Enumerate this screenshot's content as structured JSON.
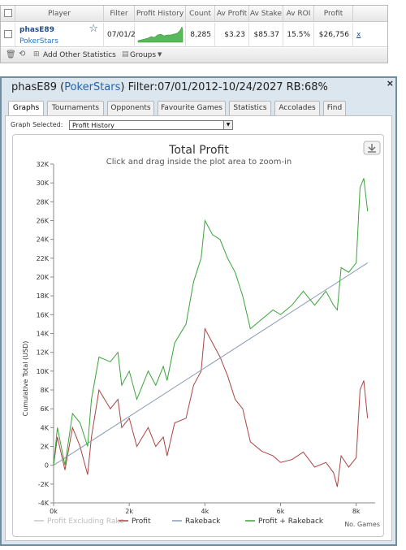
{
  "stats_table": {
    "columns": [
      "Player",
      "Filter",
      "Profit History",
      "Count",
      "Av Profit",
      "Av Stake",
      "Av ROI",
      "Profit"
    ],
    "row": {
      "player_name": "phasE89",
      "site": "PokerStars",
      "filter": "07/01/2",
      "count": "8,285",
      "av_profit": "$3.23",
      "av_stake": "$85.37",
      "av_roi": "15.5%",
      "profit": "$26,756",
      "remove": "x"
    },
    "footer": {
      "add_stats_label": "Add Other Statistics",
      "groups_label": "Groups"
    }
  },
  "panel": {
    "title_player": "phasE89",
    "title_site": "PokerStars",
    "title_rest": "Filter:07/01/2012-10/24/2027 RB:68%",
    "close": "×",
    "tabs": [
      "Graphs",
      "Tournaments",
      "Opponents",
      "Favourite Games",
      "Statistics",
      "Accolades",
      "Find"
    ],
    "active_tab": "Graphs",
    "graph_selected_label": "Graph Selected:",
    "graph_selected_value": "Profit History"
  },
  "chart_data": {
    "type": "line",
    "title": "Total Profit",
    "subtitle": "Click and drag inside the plot area to zoom-in",
    "ylabel": "Cumulative Total (USD)",
    "xlabel": "No. Games",
    "x_ticks": [
      "0k",
      "2k",
      "4k",
      "6k",
      "8k"
    ],
    "y_ticks": [
      "-4K",
      "-2K",
      "0",
      "2K",
      "4K",
      "6K",
      "8K",
      "10K",
      "12K",
      "14K",
      "16K",
      "18K",
      "20K",
      "22K",
      "24K",
      "26K",
      "28K",
      "30K",
      "32K"
    ],
    "xlim": [
      0,
      8500
    ],
    "ylim": [
      -4000,
      32000
    ],
    "legend_position": "bottom",
    "grid": false,
    "series": [
      {
        "name": "Profit Excluding Rake",
        "color": "#c8c8c8",
        "x": [],
        "y": []
      },
      {
        "name": "Profit",
        "color": "#a94442",
        "x": [
          0,
          100,
          300,
          500,
          700,
          900,
          1000,
          1200,
          1500,
          1700,
          1800,
          2000,
          2200,
          2500,
          2700,
          2900,
          3000,
          3200,
          3500,
          3700,
          3900,
          4000,
          4200,
          4400,
          4600,
          4800,
          5000,
          5200,
          5500,
          5800,
          6000,
          6300,
          6600,
          6900,
          7200,
          7400,
          7500,
          7600,
          7800,
          8000,
          8100,
          8200,
          8300
        ],
        "y": [
          0,
          3000,
          -500,
          4000,
          2000,
          -1000,
          3000,
          8000,
          6000,
          7000,
          4000,
          5000,
          2000,
          4000,
          2000,
          3000,
          1000,
          4500,
          5000,
          8500,
          10000,
          14500,
          13000,
          11500,
          9500,
          7000,
          6000,
          2500,
          1500,
          1000,
          300,
          600,
          1400,
          -200,
          300,
          -800,
          -2300,
          1000,
          -200,
          800,
          8000,
          9000,
          5000
        ]
      },
      {
        "name": "Rakeback",
        "color": "#8a9bb5",
        "x": [
          0,
          8300
        ],
        "y": [
          0,
          21500
        ]
      },
      {
        "name": "Profit + Rakeback",
        "color": "#3aa33a",
        "x": [
          0,
          100,
          300,
          500,
          700,
          900,
          1000,
          1200,
          1500,
          1700,
          1800,
          2000,
          2200,
          2500,
          2700,
          2900,
          3000,
          3200,
          3500,
          3700,
          3900,
          4000,
          4200,
          4400,
          4600,
          4800,
          5000,
          5200,
          5500,
          5800,
          6000,
          6300,
          6600,
          6900,
          7200,
          7400,
          7500,
          7600,
          7800,
          8000,
          8100,
          8200,
          8300
        ],
        "y": [
          0,
          4000,
          0,
          5500,
          4500,
          2000,
          7000,
          11500,
          11000,
          12000,
          8500,
          10000,
          7000,
          10000,
          8500,
          10500,
          9000,
          13000,
          15000,
          19500,
          22000,
          26000,
          24500,
          24000,
          22000,
          20500,
          18000,
          14500,
          15500,
          16500,
          16000,
          17000,
          18500,
          17000,
          18500,
          17000,
          16500,
          21000,
          20500,
          21500,
          29500,
          30500,
          27000
        ]
      }
    ]
  }
}
